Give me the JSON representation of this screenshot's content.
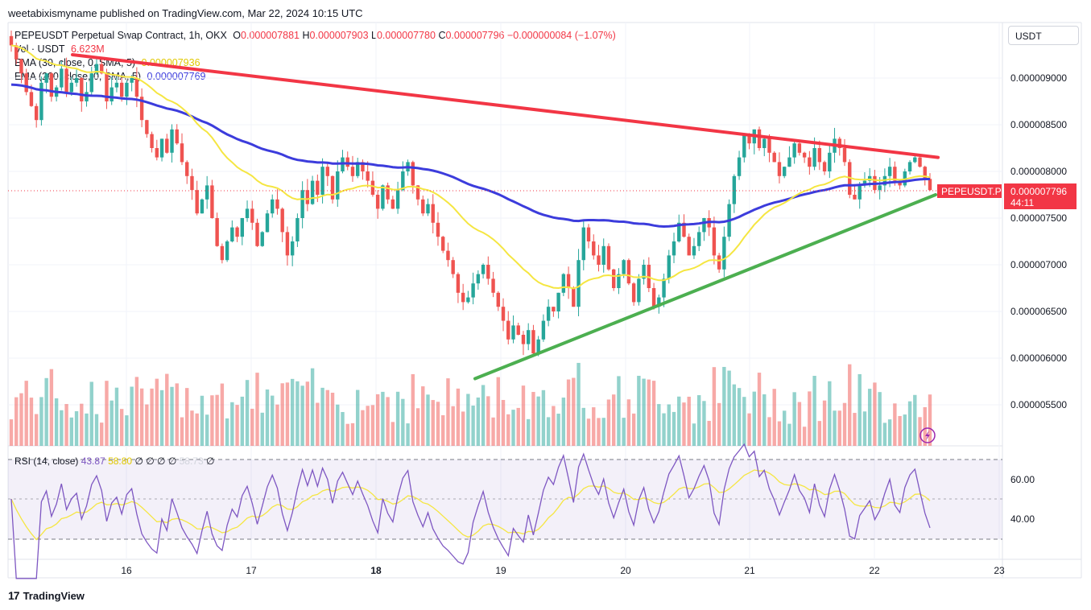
{
  "header": {
    "publisher": "weetabixismyname published on TradingView.com, Mar 22, 2024 10:15 UTC"
  },
  "legend": {
    "symbol": "PEPEUSDT Perpetual Swap Contract, 1h, OKX",
    "open_label": "O",
    "open": "0.000007881",
    "high_label": "H",
    "high": "0.000007903",
    "low_label": "L",
    "low": "0.000007780",
    "close_label": "C",
    "close": "0.000007796",
    "change": "−0.000000084 (−1.07%)",
    "vol_label": "Vol · USDT",
    "vol": "6.623M",
    "ema30_label": "EMA (30, close, 0, SMA, 5)",
    "ema30": "0.000007936",
    "ema200_label": "EMA (200, close, 0, SMA, 5)",
    "ema200": "0.000007769"
  },
  "rsi_legend": {
    "label": "RSI (14, close)",
    "rsi": "43.87",
    "ma": "58.80",
    "extra": "∅ ∅ ∅ ∅",
    "extra2": "58.73",
    "extra3": "∅"
  },
  "currency": "USDT",
  "price_tag": {
    "symbol": "PEPEUSDT.P",
    "price": "0.000007796",
    "countdown": "44:11"
  },
  "footer": {
    "brand": "TradingView"
  },
  "colors": {
    "up": "#26a69a",
    "down": "#ef5350",
    "ema30": "#f5e642",
    "ema200": "#3c3cdc",
    "resistance": "#f23645",
    "support": "#4caf50",
    "rsi": "#7e57c2"
  },
  "chart_data": {
    "type": "candlestick",
    "price_axis": {
      "ticks": [
        "0.000009000",
        "0.000008500",
        "0.000008000",
        "0.000007500",
        "0.000007000",
        "0.000006500",
        "0.000006000",
        "0.000005500"
      ],
      "range": [
        5.1e-06,
        9.5e-06
      ]
    },
    "time_axis": {
      "ticks": [
        "16",
        "17",
        "18",
        "19",
        "20",
        "21",
        "22",
        "23"
      ]
    },
    "rsi_axis": {
      "ticks": [
        "60.00",
        "40.00"
      ],
      "upper": 70,
      "lower": 30
    },
    "close_prices": [
      9.35,
      9.2,
      9.05,
      8.85,
      8.7,
      8.55,
      8.95,
      9.05,
      8.8,
      8.9,
      9.1,
      8.85,
      8.95,
      9.0,
      8.75,
      8.85,
      9.05,
      9.15,
      9.05,
      8.75,
      8.9,
      8.95,
      8.8,
      8.95,
      9.0,
      8.8,
      8.55,
      8.4,
      8.25,
      8.15,
      8.35,
      8.2,
      8.45,
      8.3,
      8.1,
      7.95,
      7.8,
      7.55,
      7.7,
      7.85,
      7.5,
      7.2,
      7.05,
      7.25,
      7.4,
      7.3,
      7.5,
      7.6,
      7.45,
      7.2,
      7.35,
      7.55,
      7.7,
      7.6,
      7.35,
      7.1,
      7.25,
      7.5,
      7.8,
      7.65,
      7.9,
      7.75,
      8.05,
      7.95,
      7.7,
      8.0,
      8.15,
      8.05,
      7.95,
      8.1,
      8.0,
      7.9,
      7.75,
      7.6,
      7.85,
      7.7,
      7.6,
      7.8,
      8.0,
      8.1,
      7.85,
      7.7,
      7.55,
      7.65,
      7.45,
      7.3,
      7.15,
      7.05,
      6.9,
      6.7,
      6.6,
      6.65,
      6.8,
      6.9,
      7.0,
      6.85,
      6.7,
      6.55,
      6.4,
      6.2,
      6.35,
      6.25,
      6.15,
      6.3,
      6.05,
      6.2,
      6.4,
      6.55,
      6.5,
      6.7,
      6.9,
      6.75,
      6.55,
      7.05,
      7.4,
      7.25,
      7.1,
      7.0,
      7.2,
      6.95,
      6.75,
      6.9,
      7.05,
      6.8,
      6.6,
      6.85,
      7.0,
      6.75,
      6.55,
      6.65,
      6.85,
      7.1,
      7.25,
      7.45,
      7.3,
      7.1,
      7.2,
      7.35,
      7.5,
      7.4,
      7.1,
      6.95,
      7.3,
      7.65,
      7.95,
      8.15,
      8.4,
      8.3,
      8.45,
      8.25,
      8.35,
      8.2,
      8.1,
      7.95,
      8.05,
      8.15,
      8.3,
      8.2,
      8.15,
      8.05,
      8.25,
      8.1,
      8.0,
      8.2,
      8.35,
      8.25,
      8.1,
      7.75,
      7.7,
      7.85,
      7.9,
      7.95,
      7.8,
      7.85,
      7.95,
      8.05,
      7.9,
      7.85,
      8.0,
      8.1,
      8.15,
      8.05,
      7.92,
      7.8
    ],
    "support_line": {
      "from": {
        "price": 5.78e-06
      },
      "to": {
        "price": 7.75e-06
      }
    },
    "resistance_line": {
      "from": {
        "price": 9.25e-06
      },
      "to": {
        "price": 8.15e-06
      }
    }
  }
}
